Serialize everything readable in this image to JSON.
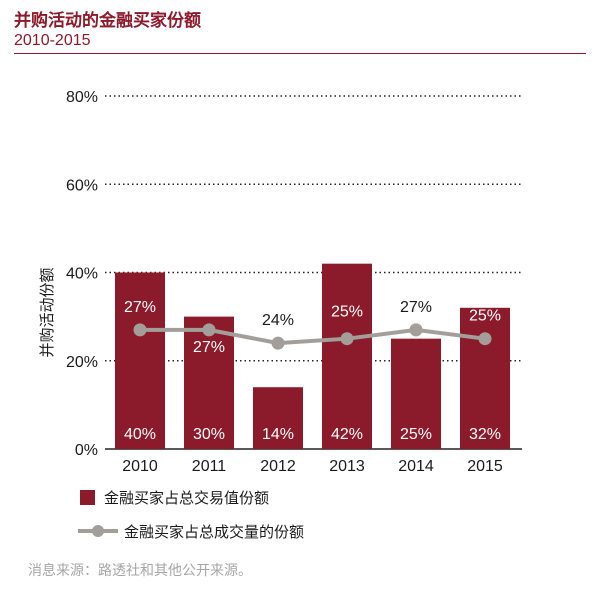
{
  "title": "并购活动的金融买家份额",
  "subtitle": "2010-2015",
  "source": "消息来源：路透社和其他公开来源。",
  "colors": {
    "bar": "#8b1a2b",
    "line": "#a39e99",
    "text": "#1a1a1a",
    "label_on_dark": "#ffffff"
  },
  "chart_data": {
    "type": "bar",
    "categories": [
      "2010",
      "2011",
      "2012",
      "2013",
      "2014",
      "2015"
    ],
    "ylabel": "并购活动份额",
    "xlabel": "",
    "ylim": [
      0,
      80
    ],
    "yticks": [
      0,
      20,
      40,
      60,
      80
    ],
    "ytick_labels": [
      "0%",
      "20%",
      "40%",
      "60%",
      "80%"
    ],
    "grid": "horizontal dotted",
    "legend_position": "bottom-left",
    "series": [
      {
        "name": "金融买家占总交易值份额",
        "type": "bar",
        "values": [
          40,
          30,
          14,
          42,
          25,
          32
        ],
        "labels": [
          "40%",
          "30%",
          "14%",
          "42%",
          "25%",
          "32%"
        ]
      },
      {
        "name": "金融买家占总成交量的份额",
        "type": "line",
        "values": [
          27,
          27,
          24,
          25,
          27,
          25
        ],
        "labels": [
          "27%",
          "27%",
          "24%",
          "25%",
          "27%",
          "25%"
        ]
      }
    ]
  }
}
